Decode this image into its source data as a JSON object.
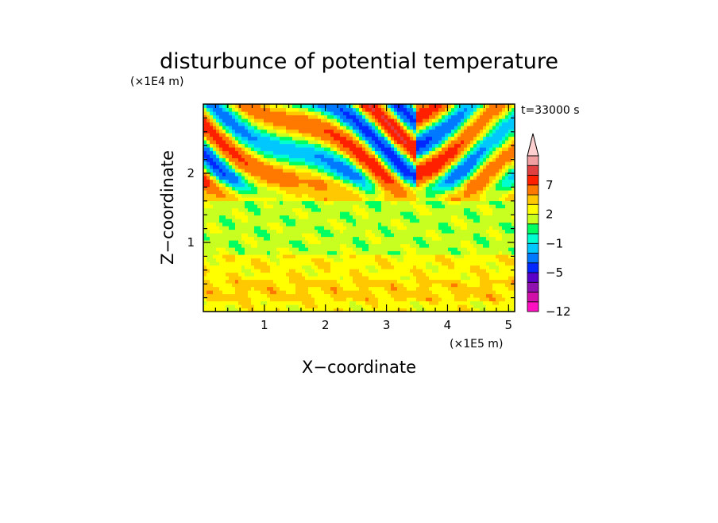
{
  "chart_data": {
    "type": "heatmap",
    "title": "disturbunce of potential temperature",
    "xlabel": "X−coordinate",
    "ylabel": "Z−coordinate",
    "x_unit": "(×1E5 m)",
    "y_unit": "(×1E4 m)",
    "time_label": "t=33000 s",
    "xlim": [
      0,
      5.1
    ],
    "ylim": [
      0,
      3.0
    ],
    "x_ticks": [
      1,
      2,
      3,
      4,
      5
    ],
    "y_ticks": [
      1,
      2
    ],
    "colorbar": {
      "levels": [
        "−12",
        "−5",
        "−1",
        "2",
        "7"
      ],
      "boundaries": [
        -12,
        -10,
        -8,
        -6,
        -5,
        -3,
        -2,
        -1,
        0,
        1,
        2,
        3,
        5,
        7,
        9,
        11
      ],
      "colors": [
        "#ff10c0",
        "#d010a8",
        "#9010b0",
        "#5a00c8",
        "#0028ff",
        "#0078ff",
        "#00c8ff",
        "#00ffd0",
        "#00ff60",
        "#c8ff20",
        "#ffff00",
        "#ffc800",
        "#ff7800",
        "#ff2000",
        "#e04040",
        "#f0a0a0",
        "#ffd0d0"
      ]
    },
    "bands": [
      {
        "z": [
          0.0,
          0.15
        ],
        "value": 1.5
      },
      {
        "z": [
          0.15,
          0.45
        ],
        "value": 2.2
      },
      {
        "z": [
          0.45,
          0.85
        ],
        "value": 1.6
      },
      {
        "z": [
          0.85,
          1.6
        ],
        "value": 0.5
      },
      {
        "z": [
          1.6,
          1.9
        ],
        "value": 2.3
      },
      {
        "z": [
          1.9,
          3.0
        ],
        "value": 0.0
      }
    ],
    "wave_pattern": "oscillating disturbance above 1.9E4 m with amplitudes from −5 to 7, tilted wave fronts converging near X=3.5E5 m"
  }
}
